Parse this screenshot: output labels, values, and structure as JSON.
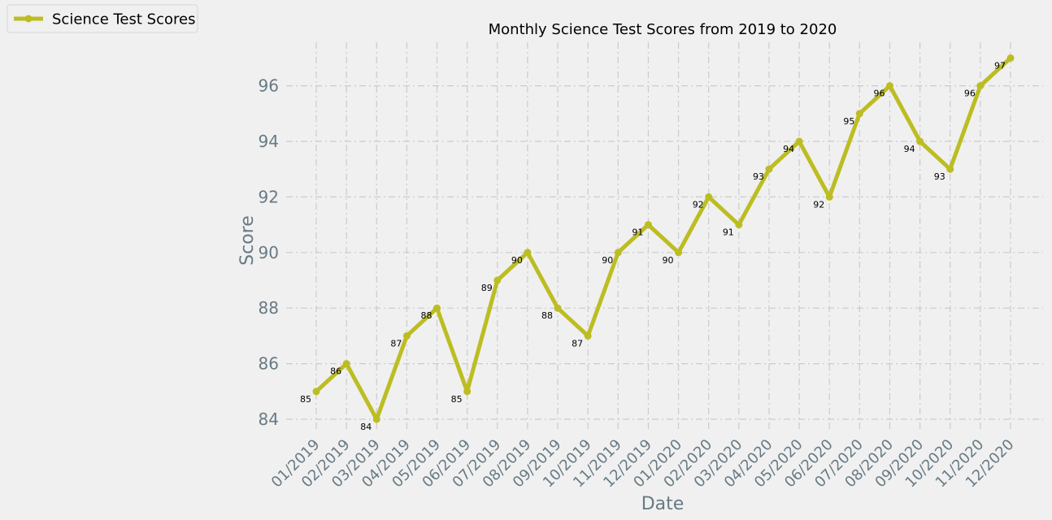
{
  "chart_data": {
    "type": "line",
    "title": "Monthly Science Test Scores from 2019 to 2020",
    "xlabel": "Date",
    "ylabel": "Score",
    "categories": [
      "01/2019",
      "02/2019",
      "03/2019",
      "04/2019",
      "05/2019",
      "06/2019",
      "07/2019",
      "08/2019",
      "09/2019",
      "10/2019",
      "11/2019",
      "12/2019",
      "01/2020",
      "02/2020",
      "03/2020",
      "04/2020",
      "05/2020",
      "06/2020",
      "07/2020",
      "08/2020",
      "09/2020",
      "10/2020",
      "11/2020",
      "12/2020"
    ],
    "series": [
      {
        "name": "Science Test Scores",
        "color": "#bcbd22",
        "values": [
          85,
          86,
          84,
          87,
          88,
          85,
          89,
          90,
          88,
          87,
          90,
          91,
          90,
          92,
          91,
          93,
          94,
          92,
          95,
          96,
          94,
          93,
          96,
          97
        ]
      }
    ],
    "ylim": [
      83.5,
      97.5
    ],
    "yticks": [
      84,
      86,
      88,
      90,
      92,
      94,
      96
    ],
    "grid": true,
    "legend_position": "top-left",
    "colors": {
      "background": "#f0f0f0",
      "grid": "#cbcbcb",
      "tick_text": "#677a84",
      "title_text": "#000000"
    }
  }
}
